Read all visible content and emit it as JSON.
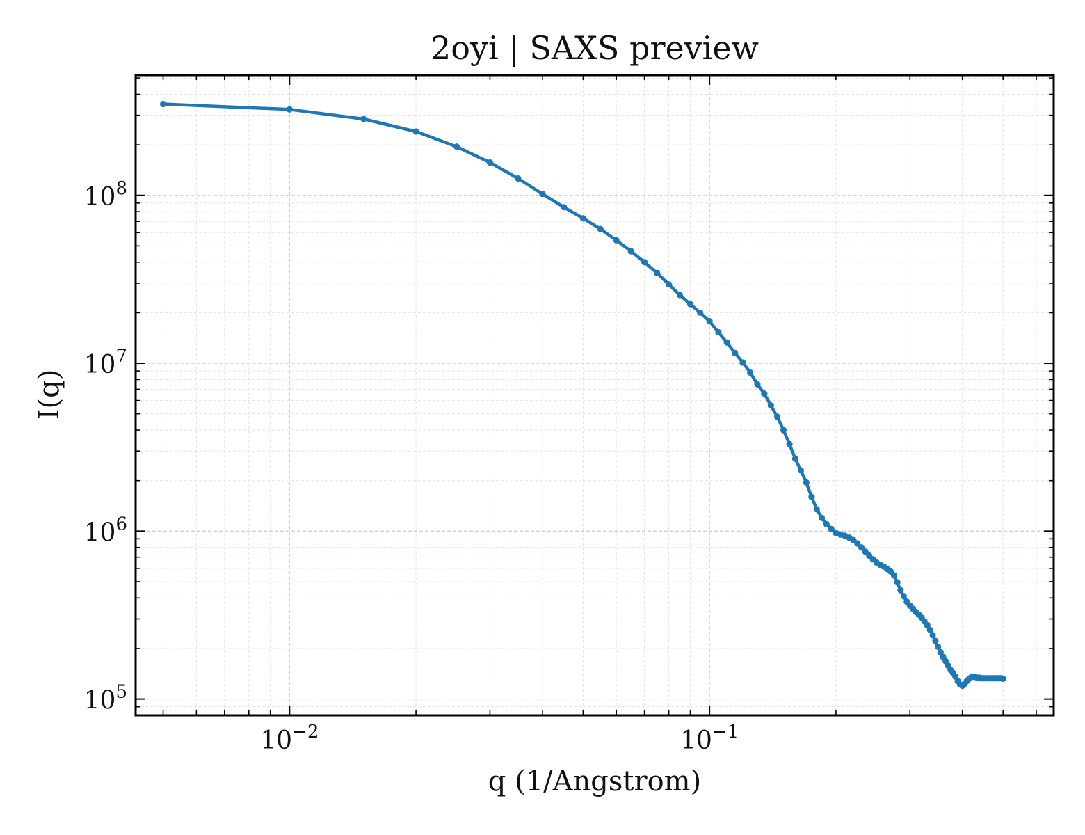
{
  "chart_data": {
    "type": "line",
    "title": "2oyi | SAXS preview",
    "xlabel": "q (1/Angstrom)",
    "ylabel": "I(q)",
    "xscale": "log",
    "yscale": "log",
    "xlim": [
      0.0043,
      0.66
    ],
    "ylim": [
      80000,
      520000000
    ],
    "grid": true,
    "x_tick_labels": [
      {
        "value": 0.01,
        "base": "10",
        "exp": "−2"
      },
      {
        "value": 0.1,
        "base": "10",
        "exp": "−1"
      }
    ],
    "y_tick_labels": [
      {
        "value": 100000,
        "base": "10",
        "exp": "5"
      },
      {
        "value": 1000000,
        "base": "10",
        "exp": "6"
      },
      {
        "value": 10000000,
        "base": "10",
        "exp": "7"
      },
      {
        "value": 100000000,
        "base": "10",
        "exp": "8"
      }
    ],
    "series": [
      {
        "color": "#1f77b4",
        "marker": "circle",
        "x": [
          0.005,
          0.01,
          0.015,
          0.02,
          0.025,
          0.03,
          0.035,
          0.04,
          0.045,
          0.05,
          0.055,
          0.06,
          0.065,
          0.07,
          0.075,
          0.08,
          0.085,
          0.09,
          0.095,
          0.1,
          0.105,
          0.11,
          0.115,
          0.12,
          0.125,
          0.13,
          0.135,
          0.14,
          0.145,
          0.15,
          0.155,
          0.16,
          0.165,
          0.17,
          0.175,
          0.18,
          0.185,
          0.19,
          0.195,
          0.2,
          0.205,
          0.21,
          0.215,
          0.22,
          0.225,
          0.23,
          0.235,
          0.24,
          0.245,
          0.25,
          0.255,
          0.26,
          0.265,
          0.27,
          0.275,
          0.28,
          0.285,
          0.29,
          0.295,
          0.3,
          0.305,
          0.31,
          0.315,
          0.32,
          0.325,
          0.33,
          0.335,
          0.34,
          0.345,
          0.35,
          0.355,
          0.36,
          0.365,
          0.37,
          0.375,
          0.38,
          0.385,
          0.39,
          0.395,
          0.4,
          0.405,
          0.41,
          0.415,
          0.42,
          0.425,
          0.43,
          0.435,
          0.44,
          0.445,
          0.45,
          0.455,
          0.46,
          0.465,
          0.47,
          0.475,
          0.48,
          0.485,
          0.49,
          0.495,
          0.5
        ],
        "values": [
          350000000,
          325000000,
          285000000,
          240000000,
          195000000,
          157000000,
          126000000,
          102000000,
          85000000,
          73000000,
          63000000,
          54000000,
          46500000,
          40000000,
          34500000,
          29500000,
          25500000,
          22500000,
          20000000,
          17800000,
          15300000,
          13300000,
          11500000,
          10100000,
          8800000,
          7500000,
          6600000,
          5600000,
          4800000,
          4000000,
          3300000,
          2700000,
          2300000,
          1950000,
          1600000,
          1350000,
          1200000,
          1100000,
          1030000,
          975000,
          955000,
          940000,
          915000,
          885000,
          845000,
          800000,
          755000,
          715000,
          680000,
          650000,
          630000,
          615000,
          595000,
          575000,
          545000,
          495000,
          445000,
          410000,
          380000,
          360000,
          345000,
          330000,
          318000,
          305000,
          290000,
          275000,
          258000,
          240000,
          222000,
          205000,
          190000,
          178000,
          168000,
          158000,
          149000,
          143000,
          136000,
          128000,
          122000,
          120000,
          123000,
          128000,
          132000,
          135000,
          136000,
          135000,
          134000,
          134000,
          133000,
          133000,
          133000,
          133000,
          133000,
          133000,
          133000,
          133000,
          133000,
          133000,
          133000,
          132000
        ]
      }
    ]
  }
}
